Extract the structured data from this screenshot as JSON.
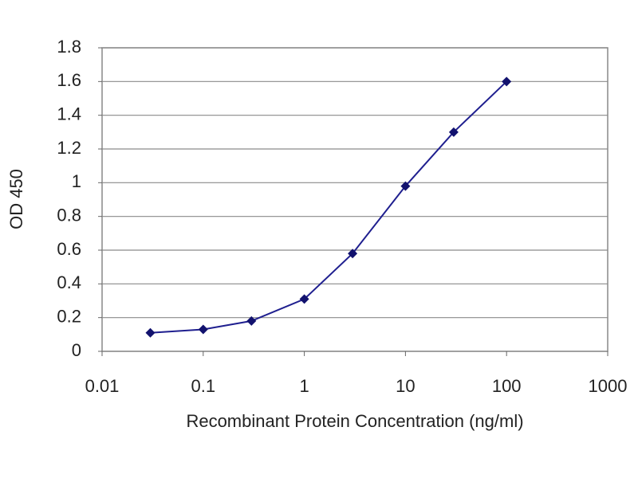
{
  "chart_data": {
    "type": "line",
    "xlabel": "Recombinant Protein Concentration (ng/ml)",
    "ylabel": "OD 450",
    "x": [
      0.03,
      0.1,
      0.3,
      1,
      3,
      10,
      30,
      100
    ],
    "values": [
      0.11,
      0.13,
      0.18,
      0.31,
      0.58,
      0.98,
      1.3,
      1.6
    ],
    "color": "#1f1f8f",
    "marker_color": "#12126e",
    "xscale": "log",
    "xlim": [
      0.01,
      1000
    ],
    "xticks": [
      0.01,
      0.1,
      1,
      10,
      100,
      1000
    ],
    "ylim": [
      0,
      1.8
    ],
    "yticks": [
      0,
      0.2,
      0.4,
      0.6,
      0.8,
      1,
      1.2,
      1.4,
      1.6,
      1.8
    ],
    "grid": true
  }
}
